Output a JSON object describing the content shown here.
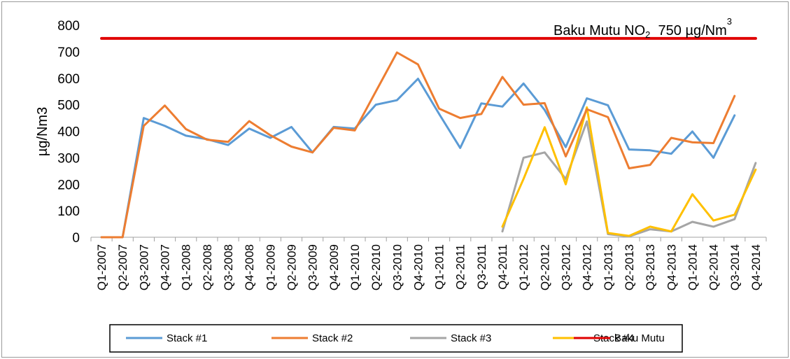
{
  "chart_data": {
    "type": "line",
    "title": "",
    "xlabel": "",
    "ylabel": "µg/Nm3",
    "ylim": [
      0,
      800
    ],
    "yticks": [
      "0",
      "100",
      "200",
      "300",
      "400",
      "500",
      "600",
      "700",
      "800"
    ],
    "grid": false,
    "legend_position": "bottom",
    "annotation": {
      "text_main": "Baku Mutu NO",
      "text_sub": "2",
      "text_rest": "  750 µg/Nm",
      "text_sup": "3"
    },
    "categories": [
      "Q1-2007",
      "Q2-2007",
      "Q3-2007",
      "Q4-2007",
      "Q1-2008",
      "Q2-2008",
      "Q3-2008",
      "Q4-2008",
      "Q1-2009",
      "Q2-2009",
      "Q3-2009",
      "Q4-2009",
      "Q1-2010",
      "Q2-2010",
      "Q3-2010",
      "Q4-2010",
      "Q1-2011",
      "Q2-2011",
      "Q3-2011",
      "Q4-2011",
      "Q1-2012",
      "Q2-2012",
      "Q3-2012",
      "Q4-2012",
      "Q1-2013",
      "Q2-2013",
      "Q3-2013",
      "Q4-2013",
      "Q1-2014",
      "Q2-2014",
      "Q3-2014",
      "Q4-2014"
    ],
    "series": [
      {
        "name": "Stack #1",
        "color": "#5b9bd5",
        "values": [
          0,
          0,
          450,
          420,
          383,
          370,
          348,
          410,
          375,
          416,
          320,
          416,
          410,
          500,
          517,
          598,
          465,
          337,
          505,
          493,
          580,
          480,
          340,
          524,
          498,
          331,
          328,
          315,
          399,
          300,
          460,
          null
        ]
      },
      {
        "name": "Stack #2",
        "color": "#ed7d31",
        "values": [
          0,
          0,
          420,
          497,
          408,
          368,
          360,
          438,
          385,
          342,
          320,
          413,
          403,
          550,
          697,
          652,
          485,
          450,
          465,
          605,
          500,
          506,
          305,
          483,
          453,
          260,
          273,
          375,
          358,
          355,
          533,
          null
        ]
      },
      {
        "name": "Stack #3",
        "color": "#a5a5a5",
        "values": [
          null,
          null,
          null,
          null,
          null,
          null,
          null,
          null,
          null,
          null,
          null,
          null,
          null,
          null,
          null,
          null,
          null,
          null,
          null,
          22,
          300,
          320,
          220,
          437,
          12,
          3,
          30,
          22,
          58,
          40,
          68,
          280
        ]
      },
      {
        "name": "Stack #4",
        "color": "#ffc000",
        "values": [
          null,
          null,
          null,
          null,
          null,
          null,
          null,
          null,
          null,
          null,
          null,
          null,
          null,
          null,
          null,
          null,
          null,
          null,
          null,
          40,
          220,
          415,
          200,
          490,
          16,
          5,
          40,
          22,
          162,
          63,
          85,
          255
        ]
      },
      {
        "name": "Baku Mutu",
        "color": "#e00000",
        "values": [
          750,
          750,
          750,
          750,
          750,
          750,
          750,
          750,
          750,
          750,
          750,
          750,
          750,
          750,
          750,
          750,
          750,
          750,
          750,
          750,
          750,
          750,
          750,
          750,
          750,
          750,
          750,
          750,
          750,
          750,
          750,
          750
        ]
      }
    ]
  }
}
